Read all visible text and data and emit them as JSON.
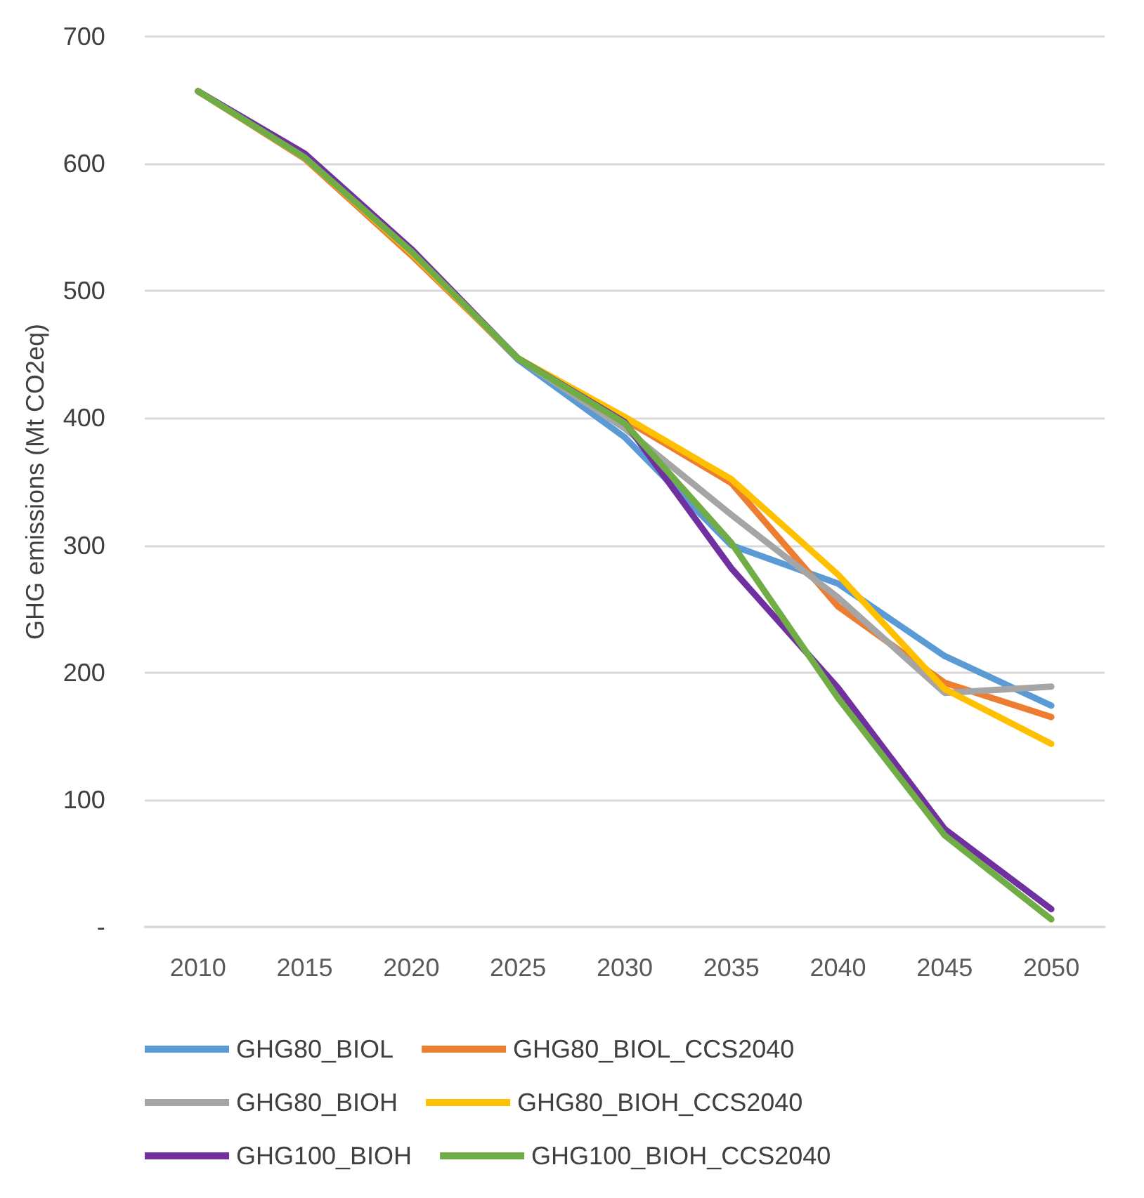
{
  "chart_data": {
    "type": "line",
    "ylabel": "GHG emissions (Mt CO2eq)",
    "categories": [
      "2010",
      "2015",
      "2020",
      "2025",
      "2030",
      "2035",
      "2040",
      "2045",
      "2050"
    ],
    "series": [
      {
        "name": "GHG80_BIOL",
        "color": "#5b9bd5",
        "values": [
          null,
          null,
          530,
          446,
          385,
          300,
          270,
          213,
          174
        ]
      },
      {
        "name": "GHG80_BIOL_CCS2040",
        "color": "#ed7d31",
        "values": [
          657,
          604,
          528,
          447,
          399,
          349,
          252,
          192,
          165
        ]
      },
      {
        "name": "GHG80_BIOH",
        "color": "#a5a5a5",
        "values": [
          657,
          605,
          531,
          447,
          392,
          324,
          259,
          184,
          189
        ]
      },
      {
        "name": "GHG80_BIOH_CCS2040",
        "color": "#ffc000",
        "values": [
          657,
          605,
          530,
          447,
          401,
          352,
          277,
          187,
          144
        ]
      },
      {
        "name": "GHG100_BIOH",
        "color": "#7030a0",
        "values": [
          657,
          608,
          533,
          447,
          397,
          282,
          188,
          77,
          14
        ]
      },
      {
        "name": "GHG100_BIOH_CCS2040",
        "color": "#70ad47",
        "values": [
          657,
          605,
          531,
          447,
          396,
          302,
          180,
          72,
          6
        ]
      }
    ],
    "ylim": [
      0,
      700
    ],
    "yticks": [
      {
        "value": 0,
        "label": "-"
      },
      100,
      200,
      300,
      400,
      500,
      600,
      700
    ],
    "grid": "y",
    "legend": "bottom",
    "marker": "none",
    "line_style": "solid"
  }
}
